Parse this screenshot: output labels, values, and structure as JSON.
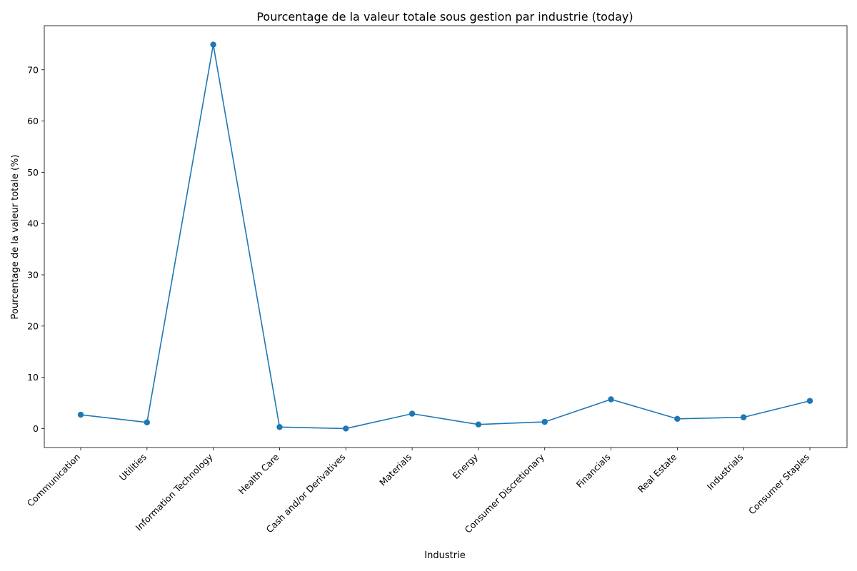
{
  "chart_data": {
    "type": "line",
    "title": "Pourcentage de la valeur totale sous gestion par industrie (today)",
    "xlabel": "Industrie",
    "ylabel": "Pourcentage de la valeur totale (%)",
    "categories": [
      "Communication",
      "Utilities",
      "Information Technology",
      "Health Care",
      "Cash and/or Derivatives",
      "Materials",
      "Energy",
      "Consumer Discretionary",
      "Financials",
      "Real Estate",
      "Industrials",
      "Consumer Staples"
    ],
    "values": [
      2.7,
      1.2,
      74.9,
      0.3,
      0.0,
      2.9,
      0.8,
      1.3,
      5.7,
      1.9,
      2.2,
      5.4
    ],
    "ylim": [
      -3.7,
      78.6
    ],
    "yticks": [
      0,
      10,
      20,
      30,
      40,
      50,
      60,
      70
    ],
    "grid": false,
    "marker": "circle",
    "color": "#1f77b4"
  }
}
